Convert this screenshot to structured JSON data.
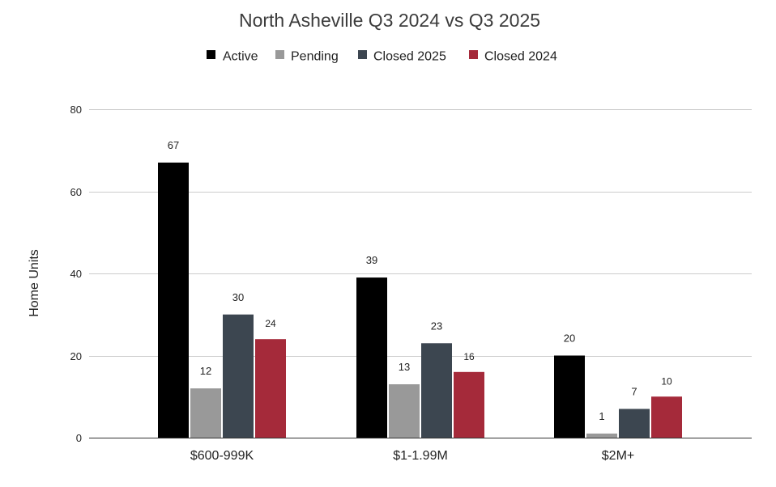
{
  "chart_data": {
    "type": "bar",
    "title": "North Asheville Q3 2024 vs Q3 2025",
    "xlabel": "",
    "ylabel": "Home Units",
    "ylim": [
      0,
      80
    ],
    "yticks": [
      0,
      20,
      40,
      60,
      80
    ],
    "grid": true,
    "legend_position": "top-center",
    "categories": [
      "$600-999K",
      "$1-1.99M",
      "$2M+"
    ],
    "series": [
      {
        "name": "Active",
        "color": "#000000",
        "values": [
          67,
          39,
          20
        ]
      },
      {
        "name": "Pending",
        "color": "#999999",
        "values": [
          12,
          13,
          1
        ]
      },
      {
        "name": "Closed 2025",
        "color": "#3c4650",
        "values": [
          30,
          23,
          7
        ]
      },
      {
        "name": "Closed 2024",
        "color": "#a52a3a",
        "values": [
          24,
          16,
          10
        ]
      }
    ]
  }
}
